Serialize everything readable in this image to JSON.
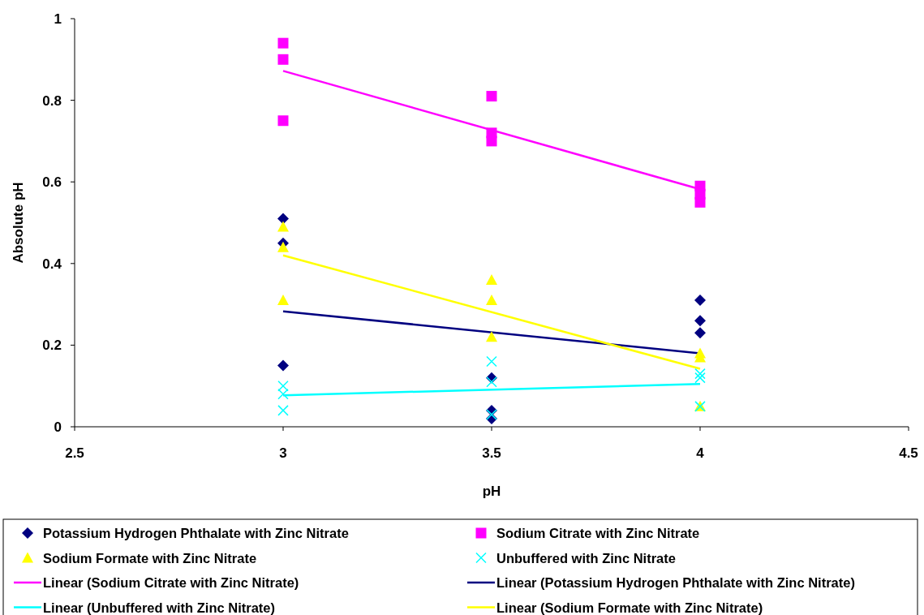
{
  "chart_data": {
    "type": "scatter",
    "xlabel": "pH",
    "ylabel": "Absolute pH",
    "xlim": [
      2.5,
      4.5
    ],
    "xticks": [
      2.5,
      3,
      3.5,
      4,
      4.5
    ],
    "ylim": [
      0,
      1
    ],
    "yticks": [
      0,
      0.2,
      0.4,
      0.6,
      0.8,
      1
    ],
    "grid": false,
    "legend": "bottom",
    "series": [
      {
        "name": "Potassium Hydrogen Phthalate with Zinc Nitrate",
        "color": "#000080",
        "marker": "diamond",
        "x": [
          3,
          3,
          3,
          3.5,
          3.5,
          3.5,
          4,
          4,
          4
        ],
        "values": [
          0.51,
          0.45,
          0.15,
          0.12,
          0.04,
          0.02,
          0.31,
          0.26,
          0.23
        ]
      },
      {
        "name": "Sodium Citrate with Zinc Nitrate",
        "color": "#ff00ff",
        "marker": "square",
        "x": [
          3,
          3,
          3,
          3.5,
          3.5,
          3.5,
          4,
          4,
          4
        ],
        "values": [
          0.94,
          0.9,
          0.75,
          0.81,
          0.72,
          0.7,
          0.59,
          0.57,
          0.55
        ]
      },
      {
        "name": "Sodium Formate with Zinc Nitrate",
        "color": "#ffff00",
        "marker": "triangle",
        "x": [
          3,
          3,
          3,
          3.5,
          3.5,
          3.5,
          4,
          4,
          4
        ],
        "values": [
          0.49,
          0.44,
          0.31,
          0.36,
          0.31,
          0.22,
          0.18,
          0.17,
          0.05
        ]
      },
      {
        "name": "Unbuffered with Zinc Nitrate",
        "color": "#00ffff",
        "marker": "cross",
        "x": [
          3,
          3,
          3,
          3.5,
          3.5,
          3.5,
          4,
          4,
          4
        ],
        "values": [
          0.1,
          0.08,
          0.04,
          0.16,
          0.11,
          0.03,
          0.13,
          0.12,
          0.05
        ]
      },
      {
        "name": "Linear (Sodium Citrate with Zinc Nitrate)",
        "type": "line",
        "color": "#ff00ff",
        "marker": "none",
        "x": [
          3,
          4
        ],
        "values": [
          0.872,
          0.582
        ]
      },
      {
        "name": "Linear (Potassium Hydrogen Phthalate with Zinc Nitrate)",
        "type": "line",
        "color": "#000080",
        "marker": "none",
        "x": [
          3,
          4
        ],
        "values": [
          0.283,
          0.18
        ]
      },
      {
        "name": "Linear (Unbuffered with Zinc Nitrate)",
        "type": "line",
        "color": "#00ffff",
        "marker": "none",
        "x": [
          3,
          4
        ],
        "values": [
          0.077,
          0.105
        ]
      },
      {
        "name": "Linear (Sodium Formate with Zinc Nitrate)",
        "type": "line",
        "color": "#ffff00",
        "marker": "none",
        "x": [
          3,
          4
        ],
        "values": [
          0.42,
          0.142
        ]
      }
    ]
  }
}
